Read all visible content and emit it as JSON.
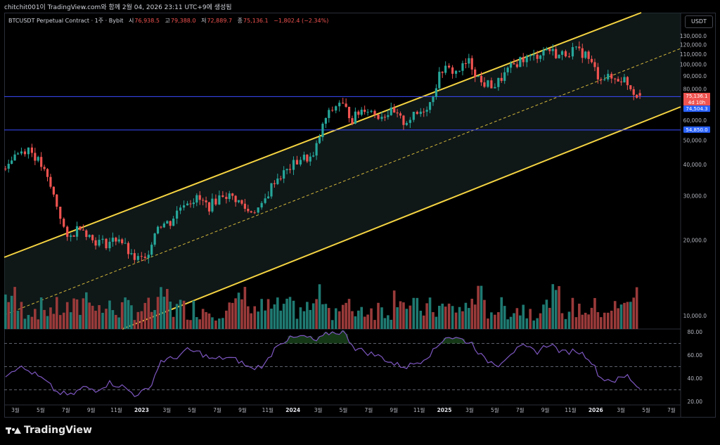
{
  "header": {
    "title": "chitchit001이 TradingView.com와 함께 2월 04, 2026 23:11 UTC+9에 생성됨"
  },
  "legend": {
    "symbol": "BTCUSDT Perpetual Contract · 1주 · Bybit",
    "open_label": "시",
    "open": "76,938.5",
    "high_label": "고",
    "high": "79,388.0",
    "low_label": "저",
    "low": "72,889.7",
    "close_label": "종",
    "close": "75,136.1",
    "change": "−1,802.4 (−2.34%)"
  },
  "currency_button": "USDT",
  "brand": "TradingView",
  "colors": {
    "up": "#26a69a",
    "down": "#ef5350",
    "channel": "#f5d442",
    "hline": "#3b4cff",
    "rsi": "#7e57c2",
    "bg": "#000000"
  },
  "chart_data": [
    {
      "type": "candlestick",
      "title": "BTCUSDT Perpetual Contract · 1주 · Bybit",
      "ylim": [
        0,
        140000
      ],
      "y_ticks": [
        "130,000.0",
        "120,000.0",
        "110,000.0",
        "100,000.0",
        "90,000.0",
        "80,000.0",
        "60,000.0",
        "50,000.0",
        "40,000.0",
        "30,000.0",
        "20,000.0",
        "10,000.0"
      ],
      "x_ticks": [
        "3월",
        "5월",
        "7월",
        "9월",
        "11월",
        "2023",
        "3월",
        "5월",
        "7월",
        "9월",
        "11월",
        "2024",
        "3월",
        "5월",
        "7월",
        "9월",
        "11월",
        "2025",
        "3월",
        "5월",
        "7월",
        "9월",
        "11월",
        "2026",
        "3월",
        "5월",
        "7월"
      ],
      "price_tags": {
        "last": "75,136.1",
        "countdown": "4d 10h",
        "level_1": "74,504.3",
        "level_2": "54,850.0"
      },
      "horizontal_lines": [
        74504.3,
        54850.0
      ],
      "channel": {
        "upper_start": [
          2022.0,
          54000
        ],
        "upper_end": [
          2026.35,
          168000
        ],
        "lower_start": [
          2022.0,
          0
        ],
        "lower_end": [
          2026.35,
          112000
        ]
      },
      "series": [
        {
          "name": "price",
          "x": [
            2022.0,
            2022.08,
            2022.17,
            2022.25,
            2022.33,
            2022.42,
            2022.5,
            2022.58,
            2022.67,
            2022.75,
            2022.83,
            2022.92,
            2023.0,
            2023.08,
            2023.17,
            2023.25,
            2023.33,
            2023.42,
            2023.5,
            2023.58,
            2023.67,
            2023.75,
            2023.83,
            2023.92,
            2024.0,
            2024.08,
            2024.17,
            2024.25,
            2024.33,
            2024.42,
            2024.5,
            2024.58,
            2024.67,
            2024.75,
            2024.83,
            2024.92,
            2025.0,
            2025.08,
            2025.17,
            2025.25,
            2025.33,
            2025.42,
            2025.5,
            2025.58,
            2025.67,
            2025.75,
            2025.83,
            2025.92,
            2026.0,
            2026.08
          ],
          "close": [
            38500,
            44000,
            46500,
            39500,
            30000,
            19800,
            23000,
            20000,
            19400,
            20500,
            17000,
            16600,
            23100,
            23500,
            28400,
            29200,
            27200,
            30500,
            29200,
            26000,
            27000,
            34600,
            37700,
            42300,
            42500,
            61000,
            71000,
            60700,
            67500,
            62700,
            64600,
            58900,
            63300,
            70200,
            96400,
            93400,
            102400,
            84300,
            82500,
            94200,
            104600,
            107100,
            115800,
            108300,
            114100,
            110000,
            90400,
            87600,
            87500,
            75136
          ]
        }
      ],
      "volume_levels": [
        "low",
        "med",
        "high"
      ]
    },
    {
      "type": "line",
      "title": "RSI",
      "ylim": [
        20,
        85
      ],
      "y_ticks": [
        "80.00",
        "60.00",
        "40.00",
        "20.00"
      ],
      "levels": [
        70,
        50,
        30
      ],
      "series": [
        {
          "name": "RSI",
          "x": [
            2022.0,
            2022.08,
            2022.17,
            2022.25,
            2022.33,
            2022.42,
            2022.5,
            2022.58,
            2022.67,
            2022.75,
            2022.83,
            2022.92,
            2023.0,
            2023.08,
            2023.17,
            2023.25,
            2023.33,
            2023.42,
            2023.5,
            2023.58,
            2023.67,
            2023.75,
            2023.83,
            2023.92,
            2024.0,
            2024.08,
            2024.17,
            2024.25,
            2024.33,
            2024.42,
            2024.5,
            2024.58,
            2024.67,
            2024.75,
            2024.83,
            2024.92,
            2025.0,
            2025.08,
            2025.17,
            2025.25,
            2025.33,
            2025.42,
            2025.5,
            2025.58,
            2025.67,
            2025.75,
            2025.83,
            2025.92,
            2026.0,
            2026.08
          ],
          "values": [
            43,
            50,
            45,
            38,
            28,
            25,
            32,
            30,
            36,
            33,
            26,
            30,
            55,
            57,
            64,
            62,
            56,
            58,
            55,
            48,
            52,
            70,
            74,
            76,
            72,
            79,
            80,
            66,
            62,
            58,
            52,
            50,
            55,
            63,
            76,
            74,
            70,
            56,
            52,
            62,
            67,
            63,
            70,
            62,
            64,
            58,
            40,
            38,
            42,
            31
          ]
        }
      ]
    }
  ]
}
